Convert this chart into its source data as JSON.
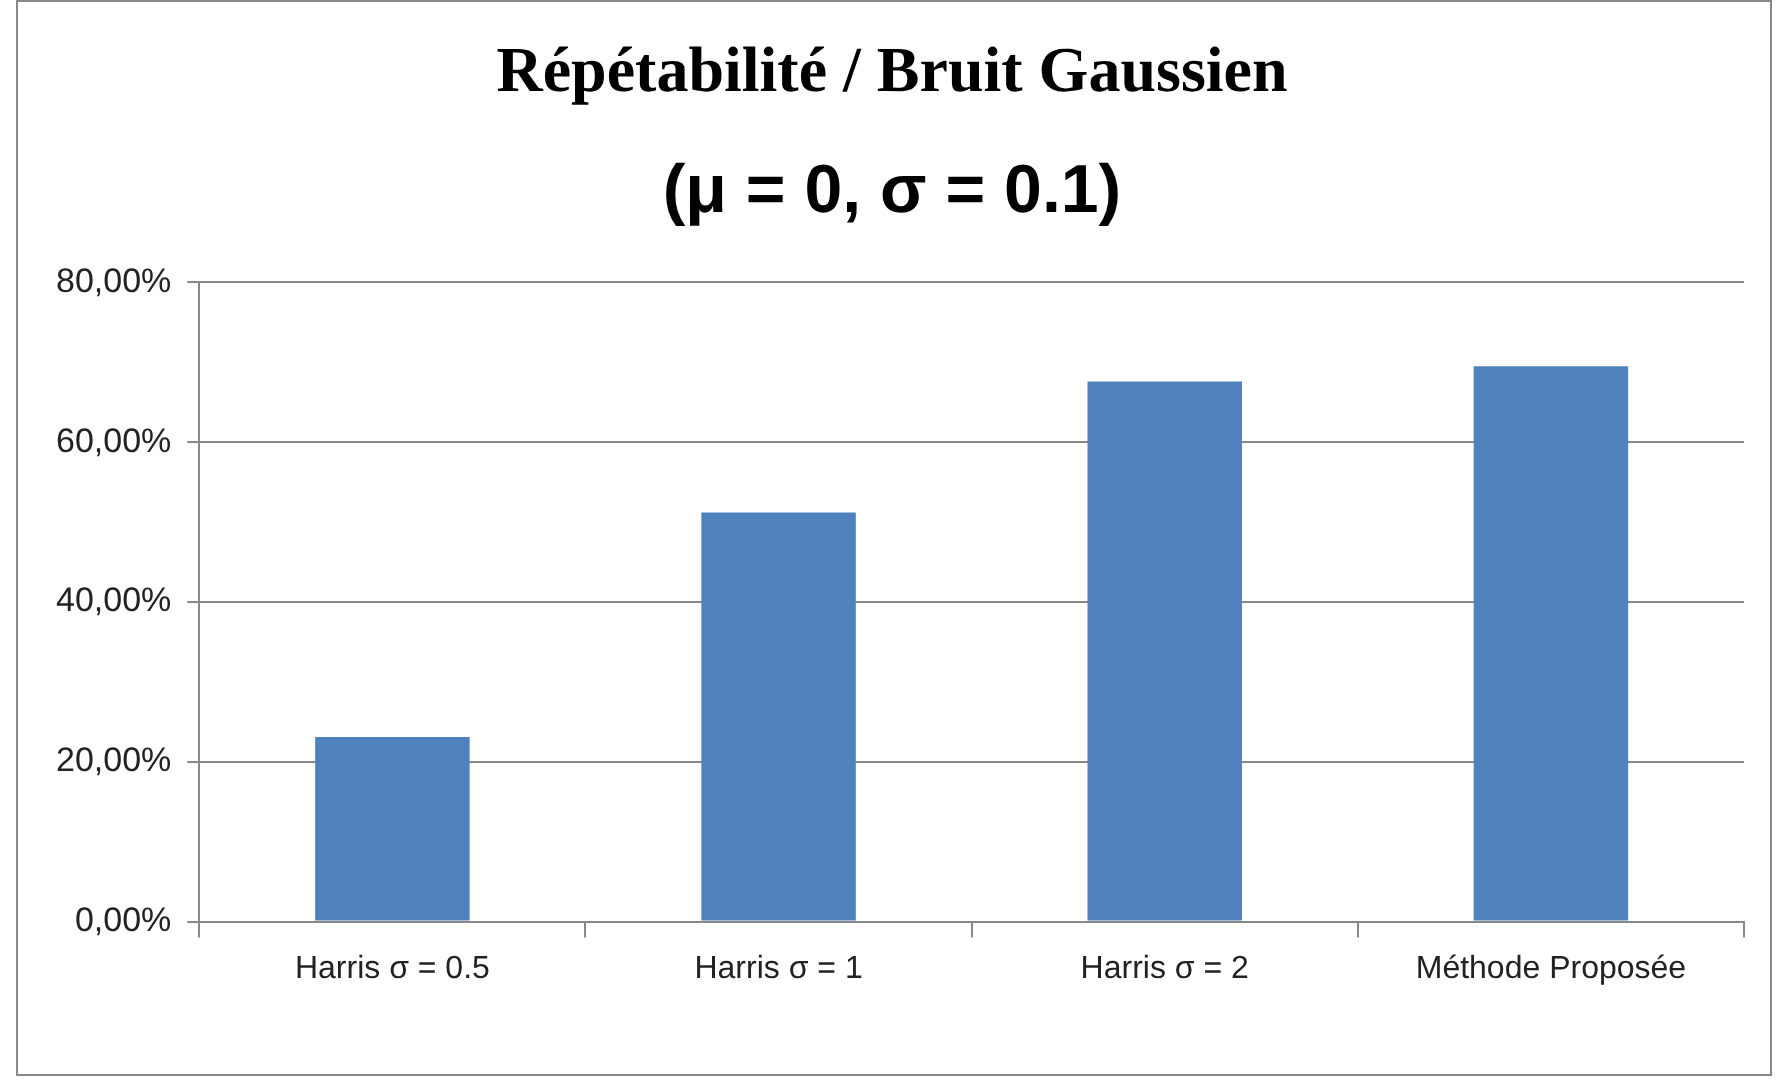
{
  "chart_data": {
    "type": "bar",
    "title": "Répétabilité / Bruit Gaussien",
    "subtitle": "(μ = 0, σ = 0.1)",
    "categories": [
      "Harris σ = 0.5",
      "Harris σ = 1",
      "Harris σ = 2",
      "Méthode Proposée"
    ],
    "values": [
      23.1,
      51.2,
      67.6,
      69.5
    ],
    "color": "#4f81bd",
    "ylim": [
      0,
      80
    ],
    "yticks": [
      {
        "value": 0,
        "label": "0,00%"
      },
      {
        "value": 20,
        "label": "20,00%"
      },
      {
        "value": 40,
        "label": "40,00%"
      },
      {
        "value": 60,
        "label": "60,00%"
      },
      {
        "value": 80,
        "label": "80,00%"
      }
    ],
    "grid": "y"
  }
}
